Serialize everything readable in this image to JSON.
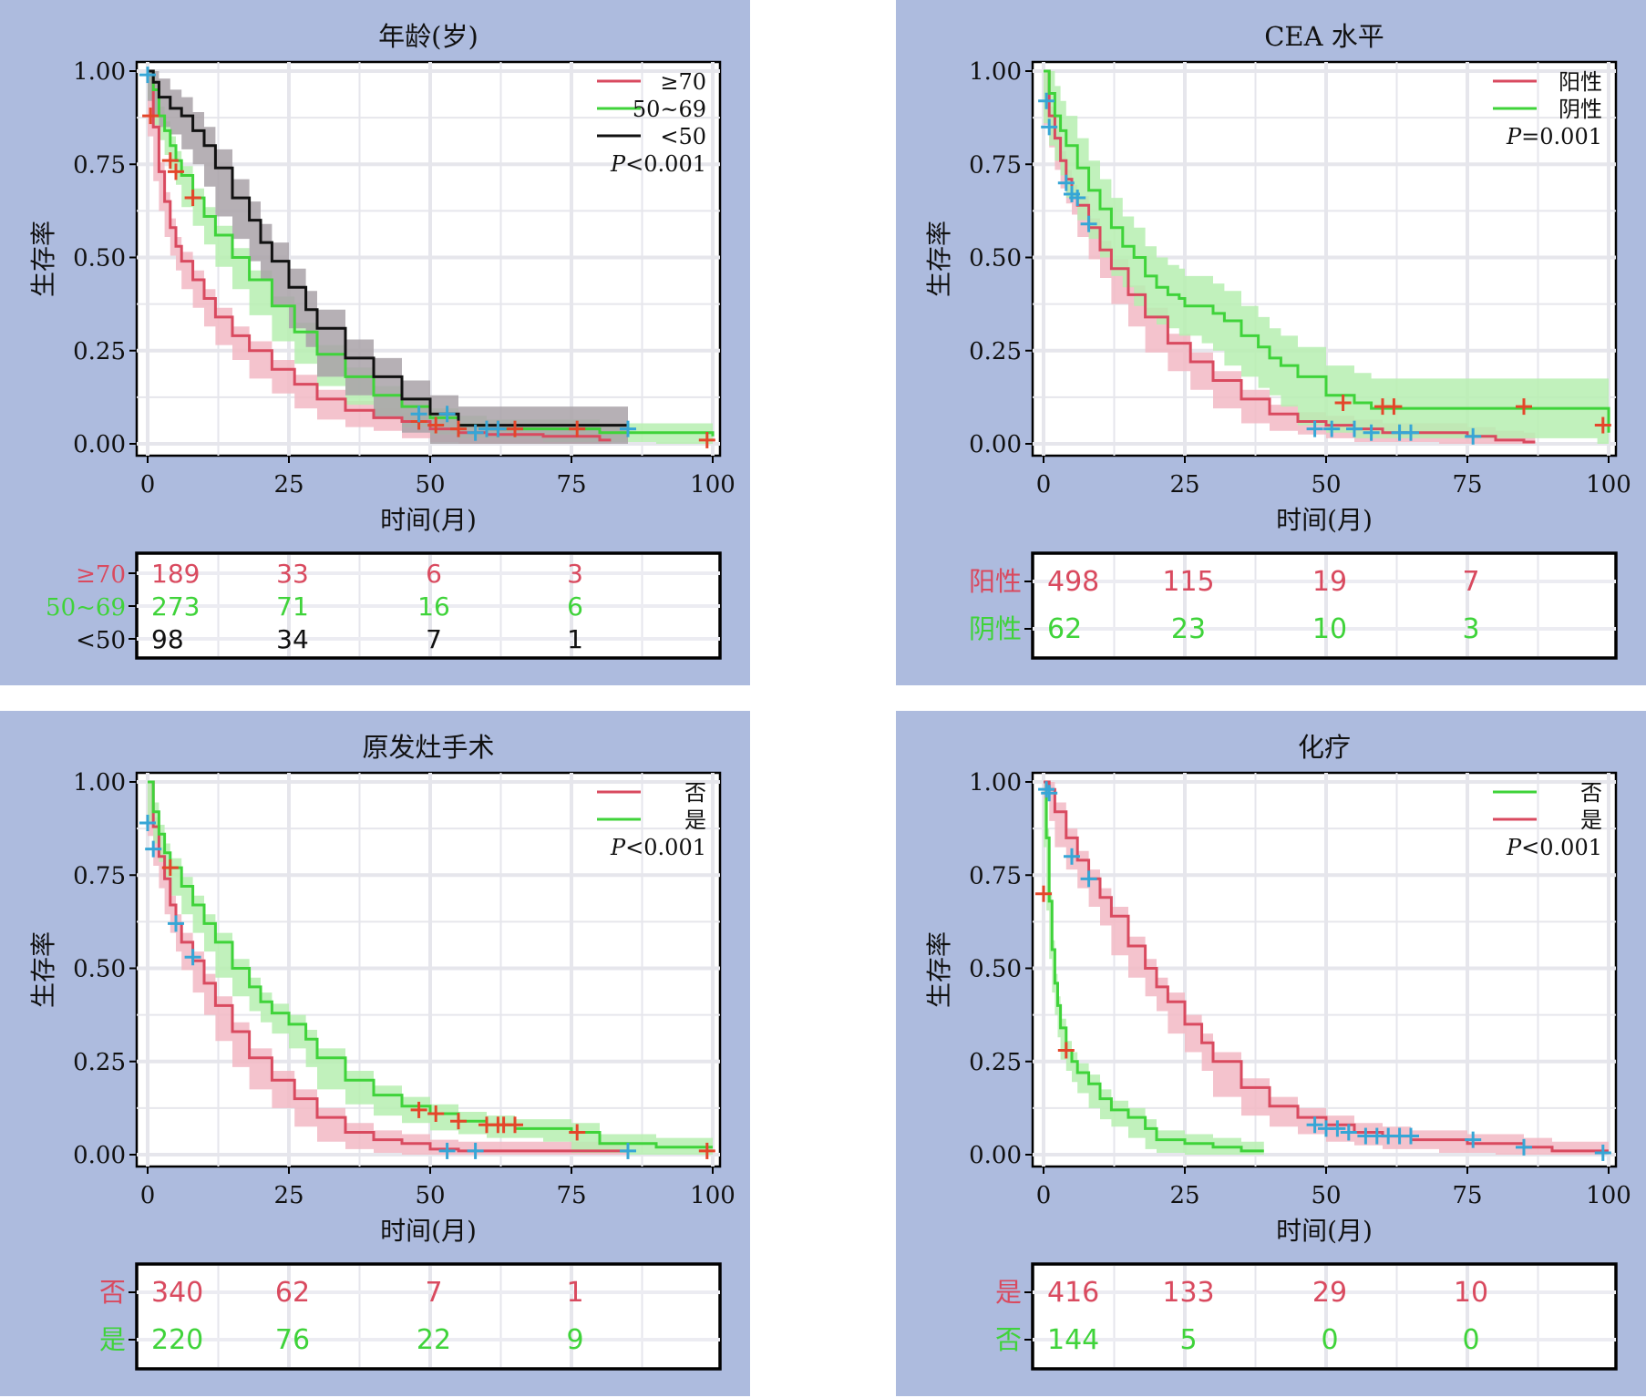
{
  "common": {
    "xlabel": "时间(月)",
    "ylabel": "生存率",
    "xticks": [
      "0",
      "25",
      "50",
      "75",
      "100"
    ],
    "yticks": [
      "0.00",
      "0.25",
      "0.50",
      "0.75",
      "1.00"
    ],
    "xlim": [
      0,
      100
    ],
    "ylim": [
      0,
      1
    ],
    "risk_times": [
      0,
      25,
      50,
      75
    ],
    "colors": {
      "panel_bg": "#adbbde",
      "red": "#d94a5f",
      "red_band": "#f2b8c4",
      "green": "#3fd33a",
      "green_band": "#b6efb0",
      "black": "#111111",
      "black_band": "#a9a2a8",
      "censor_red": "#e4462a",
      "censor_blue": "#36a6d6"
    }
  },
  "chart_data": [
    {
      "type": "line",
      "title": "年龄(岁)",
      "legend_position": "top-right",
      "pvalue": {
        "prefix": "P",
        "text": "<0.001"
      },
      "grid": true,
      "series": [
        {
          "name": "≥70",
          "color": "red",
          "x": [
            0,
            1,
            2,
            3,
            4,
            5,
            6,
            8,
            10,
            12,
            15,
            18,
            22,
            26,
            30,
            35,
            40,
            45,
            50,
            55,
            60,
            70,
            80,
            82
          ],
          "y": [
            1.0,
            0.85,
            0.73,
            0.65,
            0.58,
            0.53,
            0.49,
            0.44,
            0.39,
            0.34,
            0.29,
            0.25,
            0.2,
            0.16,
            0.12,
            0.09,
            0.07,
            0.06,
            0.04,
            0.03,
            0.025,
            0.02,
            0.01,
            0.01
          ]
        },
        {
          "name": "50~69",
          "color": "green",
          "x": [
            0,
            1,
            2,
            3,
            4,
            5,
            6,
            8,
            10,
            12,
            15,
            18,
            22,
            26,
            30,
            35,
            40,
            45,
            50,
            55,
            60,
            70,
            80,
            90,
            100
          ],
          "y": [
            1.0,
            0.95,
            0.88,
            0.84,
            0.8,
            0.76,
            0.72,
            0.66,
            0.61,
            0.56,
            0.5,
            0.44,
            0.37,
            0.3,
            0.24,
            0.18,
            0.13,
            0.1,
            0.07,
            0.05,
            0.04,
            0.04,
            0.03,
            0.03,
            0.02
          ]
        },
        {
          "name": "<50",
          "color": "black",
          "x": [
            0,
            1,
            2,
            4,
            6,
            8,
            10,
            12,
            15,
            18,
            20,
            22,
            25,
            28,
            30,
            35,
            40,
            45,
            50,
            55,
            60,
            70,
            80,
            85
          ],
          "y": [
            1.0,
            0.97,
            0.93,
            0.9,
            0.88,
            0.84,
            0.8,
            0.74,
            0.66,
            0.6,
            0.54,
            0.49,
            0.42,
            0.36,
            0.31,
            0.23,
            0.18,
            0.12,
            0.08,
            0.05,
            0.05,
            0.05,
            0.05,
            0.05
          ]
        }
      ],
      "censor_red": [
        [
          0.5,
          0.88
        ],
        [
          4,
          0.76
        ],
        [
          5,
          0.73
        ],
        [
          8,
          0.66
        ],
        [
          48,
          0.06
        ],
        [
          51,
          0.05
        ],
        [
          55,
          0.04
        ],
        [
          62,
          0.04
        ],
        [
          65,
          0.04
        ],
        [
          76,
          0.04
        ],
        [
          99,
          0.01
        ]
      ],
      "censor_blue": [
        [
          0,
          0.99
        ],
        [
          48,
          0.08
        ],
        [
          53,
          0.08
        ],
        [
          58,
          0.03
        ],
        [
          60,
          0.04
        ],
        [
          62,
          0.04
        ],
        [
          85,
          0.04
        ]
      ],
      "risk_table": [
        {
          "label": "≥70",
          "color": "red",
          "values": [
            "189",
            "33",
            "6",
            "3"
          ]
        },
        {
          "label": "50~69",
          "color": "green",
          "values": [
            "273",
            "71",
            "16",
            "6"
          ]
        },
        {
          "label": "<50",
          "color": "black",
          "values": [
            "98",
            "34",
            "7",
            "1"
          ]
        }
      ]
    },
    {
      "type": "line",
      "title": "CEA 水平",
      "legend_position": "top-right",
      "pvalue": {
        "prefix": "P",
        "text": "=0.001"
      },
      "grid": true,
      "series": [
        {
          "name": "阳性",
          "color": "red",
          "x": [
            0,
            1,
            2,
            3,
            4,
            5,
            6,
            8,
            10,
            12,
            15,
            18,
            22,
            26,
            30,
            35,
            40,
            45,
            50,
            55,
            60,
            65,
            70,
            75,
            80,
            85,
            87
          ],
          "y": [
            1.0,
            0.88,
            0.82,
            0.76,
            0.71,
            0.67,
            0.64,
            0.58,
            0.52,
            0.47,
            0.4,
            0.34,
            0.27,
            0.22,
            0.17,
            0.12,
            0.08,
            0.06,
            0.05,
            0.04,
            0.03,
            0.03,
            0.03,
            0.02,
            0.01,
            0.005,
            0.005
          ]
        },
        {
          "name": "阴性",
          "color": "green",
          "x": [
            0,
            1,
            2,
            3,
            4,
            6,
            8,
            10,
            12,
            14,
            16,
            18,
            20,
            22,
            24,
            25,
            28,
            30,
            32,
            35,
            38,
            40,
            42,
            45,
            50,
            55,
            58,
            60,
            70,
            80,
            90,
            98,
            100
          ],
          "y": [
            1.0,
            0.94,
            0.88,
            0.84,
            0.8,
            0.74,
            0.68,
            0.63,
            0.58,
            0.53,
            0.5,
            0.45,
            0.42,
            0.4,
            0.39,
            0.37,
            0.37,
            0.35,
            0.33,
            0.29,
            0.26,
            0.23,
            0.21,
            0.18,
            0.13,
            0.11,
            0.095,
            0.095,
            0.095,
            0.095,
            0.095,
            0.095,
            0.03
          ]
        }
      ],
      "censor_red": [
        [
          53,
          0.11
        ],
        [
          60,
          0.1
        ],
        [
          62,
          0.1
        ],
        [
          85,
          0.1
        ],
        [
          99,
          0.05
        ]
      ],
      "censor_blue": [
        [
          0.5,
          0.92
        ],
        [
          1,
          0.85
        ],
        [
          4,
          0.7
        ],
        [
          5,
          0.67
        ],
        [
          6,
          0.66
        ],
        [
          8,
          0.59
        ],
        [
          48,
          0.04
        ],
        [
          51,
          0.04
        ],
        [
          55,
          0.04
        ],
        [
          58,
          0.03
        ],
        [
          63,
          0.03
        ],
        [
          65,
          0.03
        ],
        [
          76,
          0.02
        ]
      ],
      "risk_table": [
        {
          "label": "阳性",
          "color": "red",
          "values": [
            "498",
            "115",
            "19",
            "7"
          ]
        },
        {
          "label": "阴性",
          "color": "green",
          "values": [
            "62",
            "23",
            "10",
            "3"
          ]
        }
      ]
    },
    {
      "type": "line",
      "title": "原发灶手术",
      "legend_position": "top-right",
      "pvalue": {
        "prefix": "P",
        "text": "<0.001"
      },
      "grid": true,
      "series": [
        {
          "name": "否",
          "color": "red",
          "x": [
            0,
            1,
            2,
            3,
            4,
            5,
            6,
            8,
            10,
            12,
            15,
            18,
            22,
            26,
            30,
            35,
            40,
            45,
            50,
            55,
            60,
            70,
            80,
            85
          ],
          "y": [
            1.0,
            0.88,
            0.8,
            0.74,
            0.67,
            0.62,
            0.57,
            0.52,
            0.46,
            0.4,
            0.33,
            0.26,
            0.2,
            0.15,
            0.1,
            0.06,
            0.04,
            0.03,
            0.015,
            0.01,
            0.01,
            0.01,
            0.01,
            0.01
          ]
        },
        {
          "name": "是",
          "color": "green",
          "x": [
            0,
            1,
            2,
            3,
            4,
            6,
            8,
            10,
            12,
            15,
            18,
            20,
            22,
            25,
            28,
            30,
            35,
            40,
            45,
            50,
            55,
            60,
            65,
            70,
            75,
            80,
            85,
            90,
            100
          ],
          "y": [
            1.0,
            0.92,
            0.86,
            0.81,
            0.77,
            0.72,
            0.67,
            0.62,
            0.57,
            0.5,
            0.45,
            0.41,
            0.38,
            0.35,
            0.31,
            0.26,
            0.2,
            0.16,
            0.13,
            0.11,
            0.09,
            0.08,
            0.07,
            0.07,
            0.06,
            0.03,
            0.03,
            0.02,
            0.02
          ]
        }
      ],
      "censor_red": [
        [
          4,
          0.77
        ],
        [
          48,
          0.12
        ],
        [
          51,
          0.11
        ],
        [
          55,
          0.09
        ],
        [
          60,
          0.08
        ],
        [
          62,
          0.08
        ],
        [
          63,
          0.08
        ],
        [
          65,
          0.08
        ],
        [
          76,
          0.06
        ],
        [
          99,
          0.01
        ]
      ],
      "censor_blue": [
        [
          0,
          0.89
        ],
        [
          1,
          0.82
        ],
        [
          5,
          0.62
        ],
        [
          8,
          0.53
        ],
        [
          53,
          0.01
        ],
        [
          58,
          0.01
        ],
        [
          85,
          0.01
        ]
      ],
      "risk_table": [
        {
          "label": "否",
          "color": "red",
          "values": [
            "340",
            "62",
            "7",
            "1"
          ]
        },
        {
          "label": "是",
          "color": "green",
          "values": [
            "220",
            "76",
            "22",
            "9"
          ]
        }
      ]
    },
    {
      "type": "line",
      "title": "化疗",
      "legend_position": "top-right",
      "pvalue": {
        "prefix": "P",
        "text": "<0.001"
      },
      "grid": true,
      "series": [
        {
          "name": "否",
          "color": "green",
          "x": [
            0,
            0.5,
            1,
            1.5,
            2,
            2.5,
            3,
            4,
            5,
            6,
            8,
            10,
            12,
            15,
            18,
            20,
            25,
            30,
            35,
            39
          ],
          "y": [
            1.0,
            0.85,
            0.68,
            0.55,
            0.46,
            0.4,
            0.34,
            0.28,
            0.25,
            0.22,
            0.19,
            0.15,
            0.12,
            0.1,
            0.07,
            0.04,
            0.03,
            0.02,
            0.01,
            0.01
          ]
        },
        {
          "name": "是",
          "color": "red",
          "x": [
            0,
            1,
            2,
            4,
            6,
            8,
            10,
            12,
            15,
            18,
            20,
            22,
            25,
            28,
            30,
            35,
            40,
            45,
            50,
            55,
            60,
            65,
            70,
            75,
            80,
            85,
            90,
            98,
            100
          ],
          "y": [
            1.0,
            0.98,
            0.92,
            0.85,
            0.79,
            0.74,
            0.69,
            0.64,
            0.56,
            0.5,
            0.45,
            0.41,
            0.35,
            0.3,
            0.25,
            0.18,
            0.13,
            0.1,
            0.08,
            0.06,
            0.05,
            0.04,
            0.04,
            0.03,
            0.03,
            0.02,
            0.01,
            0.01,
            0.01
          ]
        }
      ],
      "censor_red": [
        [
          0,
          0.7
        ],
        [
          4,
          0.28
        ]
      ],
      "censor_blue": [
        [
          0.5,
          0.98
        ],
        [
          1,
          0.97
        ],
        [
          5,
          0.8
        ],
        [
          8,
          0.74
        ],
        [
          48,
          0.08
        ],
        [
          50,
          0.07
        ],
        [
          52,
          0.07
        ],
        [
          54,
          0.06
        ],
        [
          57,
          0.05
        ],
        [
          59,
          0.05
        ],
        [
          61,
          0.05
        ],
        [
          63,
          0.05
        ],
        [
          65,
          0.05
        ],
        [
          76,
          0.04
        ],
        [
          85,
          0.02
        ],
        [
          99,
          0.005
        ]
      ],
      "risk_table": [
        {
          "label": "是",
          "color": "red",
          "values": [
            "416",
            "133",
            "29",
            "10"
          ]
        },
        {
          "label": "否",
          "color": "green",
          "values": [
            "144",
            "5",
            "0",
            "0"
          ]
        }
      ]
    }
  ]
}
